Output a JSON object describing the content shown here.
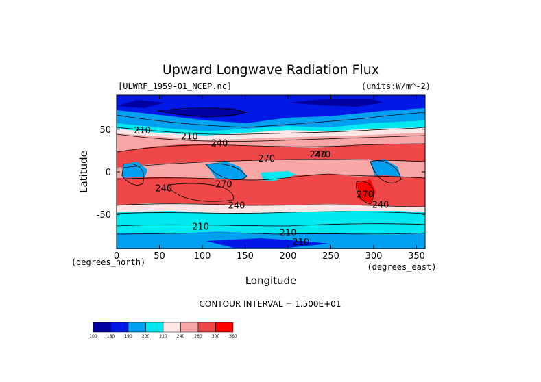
{
  "chart_data": {
    "type": "heatmap",
    "title": "Upward Longwave Radiation Flux",
    "file_label": "[ULWRF_1959-01_NCEP.nc]",
    "units_label": "(units:W/m^-2)",
    "xlabel": "Longitude",
    "ylabel": "Latitude",
    "x_units_label": "(degrees_east)",
    "y_units_label": "(degrees_north)",
    "xlim": [
      0,
      360
    ],
    "ylim": [
      -90,
      90
    ],
    "x_ticks": [
      0,
      50,
      100,
      150,
      200,
      250,
      300,
      350
    ],
    "y_ticks": [
      50,
      0,
      -50
    ],
    "contour_interval_text": "CONTOUR INTERVAL = 1.500E+01",
    "contour_labels": [
      {
        "text": "210",
        "lon": 30,
        "lat": 45
      },
      {
        "text": "210",
        "lon": 85,
        "lat": 38
      },
      {
        "text": "240",
        "lon": 120,
        "lat": 30
      },
      {
        "text": "270",
        "lon": 175,
        "lat": 12
      },
      {
        "text": "240",
        "lon": 235,
        "lat": 17
      },
      {
        "text": "270",
        "lon": 240,
        "lat": 17
      },
      {
        "text": "240",
        "lon": 55,
        "lat": -23
      },
      {
        "text": "270",
        "lon": 125,
        "lat": -18
      },
      {
        "text": "240",
        "lon": 140,
        "lat": -43
      },
      {
        "text": "270",
        "lon": 290,
        "lat": -30
      },
      {
        "text": "240",
        "lon": 308,
        "lat": -42
      },
      {
        "text": "210",
        "lon": 98,
        "lat": -68
      },
      {
        "text": "210",
        "lon": 200,
        "lat": -75
      },
      {
        "text": "210",
        "lon": 215,
        "lat": -86
      }
    ],
    "colorbar": {
      "levels": [
        "100",
        "180",
        "190",
        "200",
        "220",
        "240",
        "260",
        "300",
        "360"
      ],
      "colors": [
        "#0000a0",
        "#0018e6",
        "#00a0f0",
        "#00e8f0",
        "#ffe6e6",
        "#f8a6a6",
        "#f04848",
        "#ff0000"
      ]
    },
    "palette": {
      "very_low": "#0000a0",
      "low": "#0018e6",
      "mid_low": "#00a0f0",
      "cyan": "#00e8f0",
      "neutral": "#ffe6e6",
      "pink": "#f8a6a6",
      "red": "#f04848",
      "max": "#ff0000"
    }
  }
}
